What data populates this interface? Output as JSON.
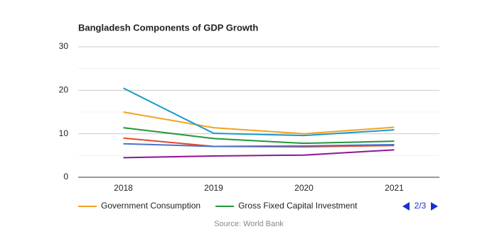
{
  "chart_data": {
    "type": "line",
    "title": "Bangladesh Components of GDP Growth",
    "categories": [
      "2018",
      "2019",
      "2020",
      "2021"
    ],
    "series": [
      {
        "name": "Government Consumption",
        "color": "#f4a11e",
        "values": [
          15.0,
          11.4,
          10.0,
          11.5
        ]
      },
      {
        "color": "#1b99c9",
        "values": [
          20.5,
          10.1,
          9.6,
          10.9
        ]
      },
      {
        "name": "Gross Fixed Capital Investment",
        "color": "#22963a",
        "values": [
          11.4,
          8.9,
          7.8,
          8.3
        ]
      },
      {
        "color": "#e2492f",
        "values": [
          9.0,
          7.1,
          7.0,
          7.3
        ]
      },
      {
        "color": "#4a72c9",
        "values": [
          7.7,
          7.1,
          7.2,
          7.5
        ]
      },
      {
        "color": "#8e1596",
        "values": [
          4.5,
          4.9,
          5.1,
          6.3
        ]
      }
    ],
    "ylim": [
      0,
      30
    ],
    "yticks": [
      0,
      10,
      20,
      30
    ],
    "minor_yticks": [
      5,
      15,
      25
    ],
    "grid": true,
    "legend_page": "2/3",
    "source": "Source: World Bank"
  }
}
